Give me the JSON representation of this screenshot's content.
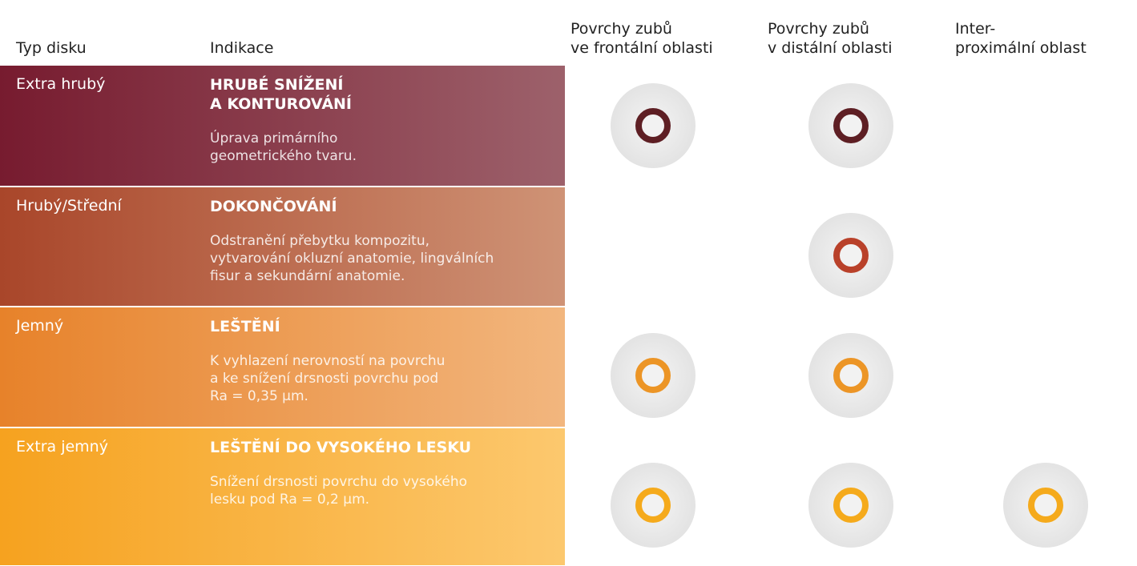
{
  "header": {
    "columns": [
      "Typ disku",
      "Indikace",
      "Povrchy zubů\nve frontální oblasti",
      "Povrchy zubů\nv distální oblasti",
      "Inter-\nproximální oblast"
    ]
  },
  "rows": [
    {
      "type": "Extra hrubý",
      "title": "HRUBÉ SNÍŽENÍ\nA KONTUROVÁNÍ",
      "description": "Úprava primárního\ngeometrického tvaru."
    },
    {
      "type": "Hrubý/Střední",
      "title": "DOKONČOVÁNÍ",
      "description": "Odstranění přebytku kompozitu,\nvytvarování okluzní anatomie, lingválních\nfisur a sekundární anatomie."
    },
    {
      "type": "Jemný",
      "title": "LEŠTĚNÍ",
      "description": "K vyhlazení nerovností na povrchu\na ke snížení drsnosti povrchu pod\nRa = 0,35 µm."
    },
    {
      "type": "Extra jemný",
      "title": "LEŠTĚNÍ DO VYSOKÉHO LESKU",
      "description": "Snížení drsnosti povrchu do vysokého\nlesku pod Ra = 0,2 µm."
    }
  ]
}
